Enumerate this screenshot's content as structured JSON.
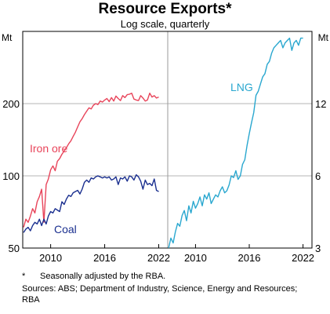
{
  "chart_data": {
    "type": "line",
    "title": "Resource Exports*",
    "subtitle": "Log scale, quarterly",
    "y_scale": "log",
    "grid": true,
    "panels": [
      {
        "id": "left",
        "unit": "Mt",
        "y_axis_side": "left",
        "ylim": [
          50,
          400
        ],
        "yticks": [
          50,
          100,
          200
        ],
        "xlim": [
          2006.9,
          2023.0
        ],
        "xticks": [
          2010,
          2016,
          2022
        ],
        "series": [
          {
            "name": "Iron ore",
            "color": "#e8445a",
            "x": [
              2007.0,
              2007.25,
              2007.5,
              2007.75,
              2008.0,
              2008.25,
              2008.5,
              2008.75,
              2009.0,
              2009.25,
              2009.5,
              2009.75,
              2010.0,
              2010.25,
              2010.5,
              2010.75,
              2011.0,
              2011.25,
              2011.5,
              2011.75,
              2012.0,
              2012.25,
              2012.5,
              2012.75,
              2013.0,
              2013.25,
              2013.5,
              2013.75,
              2014.0,
              2014.25,
              2014.5,
              2014.75,
              2015.0,
              2015.25,
              2015.5,
              2015.75,
              2016.0,
              2016.25,
              2016.5,
              2016.75,
              2017.0,
              2017.25,
              2017.5,
              2017.75,
              2018.0,
              2018.25,
              2018.5,
              2018.75,
              2019.0,
              2019.25,
              2019.5,
              2019.75,
              2020.0,
              2020.25,
              2020.5,
              2020.75,
              2021.0,
              2021.25,
              2021.5,
              2021.75,
              2022.0
            ],
            "values": [
              61,
              66,
              64,
              68,
              73,
              70,
              78,
              82,
              88,
              64,
              92,
              97,
              106,
              110,
              105,
              115,
              118,
              123,
              127,
              131,
              136,
              140,
              146,
              152,
              160,
              168,
              173,
              180,
              186,
              192,
              190,
              197,
              200,
              198,
              205,
              203,
              207,
              210,
              204,
              212,
              205,
              215,
              210,
              206,
              216,
              212,
              218,
              219,
              221,
              209,
              207,
              206,
              216,
              211,
              205,
              207,
              221,
              213,
              216,
              211,
              213
            ]
          },
          {
            "name": "Coal",
            "color": "#1a2f8f",
            "x": [
              2007.0,
              2007.25,
              2007.5,
              2007.75,
              2008.0,
              2008.25,
              2008.5,
              2008.75,
              2009.0,
              2009.25,
              2009.5,
              2009.75,
              2010.0,
              2010.25,
              2010.5,
              2010.75,
              2011.0,
              2011.25,
              2011.5,
              2011.75,
              2012.0,
              2012.25,
              2012.5,
              2012.75,
              2013.0,
              2013.25,
              2013.5,
              2013.75,
              2014.0,
              2014.25,
              2014.5,
              2014.75,
              2015.0,
              2015.25,
              2015.5,
              2015.75,
              2016.0,
              2016.25,
              2016.5,
              2016.75,
              2017.0,
              2017.25,
              2017.5,
              2017.75,
              2018.0,
              2018.25,
              2018.5,
              2018.75,
              2019.0,
              2019.25,
              2019.5,
              2019.75,
              2020.0,
              2020.25,
              2020.5,
              2020.75,
              2021.0,
              2021.25,
              2021.5,
              2021.75,
              2022.0
            ],
            "values": [
              58,
              60,
              61,
              59,
              62,
              64,
              63,
              66,
              62,
              66,
              63,
              68,
              71,
              70,
              73,
              72,
              71,
              78,
              76,
              80,
              83,
              82,
              85,
              86,
              87,
              84,
              88,
              94,
              96,
              94,
              98,
              97,
              99,
              100,
              99,
              98,
              99,
              98,
              99,
              96,
              97,
              99,
              92,
              98,
              97,
              99,
              95,
              100,
              99,
              96,
              101,
              99,
              95,
              88,
              96,
              92,
              93,
              91,
              97,
              87,
              86
            ]
          }
        ]
      },
      {
        "id": "right",
        "unit": "Mt",
        "y_axis_side": "right",
        "ylim": [
          3,
          24
        ],
        "yticks": [
          3,
          6,
          12
        ],
        "xlim": [
          2006.9,
          2023.0
        ],
        "xticks": [
          2010,
          2016,
          2022
        ],
        "series": [
          {
            "name": "LNG",
            "color": "#29a7cf",
            "x": [
              2007.0,
              2007.25,
              2007.5,
              2007.75,
              2008.0,
              2008.25,
              2008.5,
              2008.75,
              2009.0,
              2009.25,
              2009.5,
              2009.75,
              2010.0,
              2010.25,
              2010.5,
              2010.75,
              2011.0,
              2011.25,
              2011.5,
              2011.75,
              2012.0,
              2012.25,
              2012.5,
              2012.75,
              2013.0,
              2013.25,
              2013.5,
              2013.75,
              2014.0,
              2014.25,
              2014.5,
              2014.75,
              2015.0,
              2015.25,
              2015.5,
              2015.75,
              2016.0,
              2016.25,
              2016.5,
              2016.75,
              2017.0,
              2017.25,
              2017.5,
              2017.75,
              2018.0,
              2018.25,
              2018.5,
              2018.75,
              2019.0,
              2019.25,
              2019.5,
              2019.75,
              2020.0,
              2020.25,
              2020.5,
              2020.75,
              2021.0,
              2021.25,
              2021.5,
              2021.75,
              2022.0
            ],
            "values": [
              3.0,
              3.3,
              3.15,
              3.5,
              3.8,
              3.7,
              4.1,
              4.3,
              3.9,
              4.5,
              4.2,
              4.7,
              4.4,
              4.6,
              4.9,
              4.5,
              5.0,
              4.8,
              5.1,
              4.6,
              4.8,
              5.0,
              4.9,
              5.2,
              5.4,
              5.1,
              5.2,
              5.5,
              6.0,
              5.9,
              6.3,
              5.8,
              6.0,
              6.7,
              7.0,
              8.0,
              9.0,
              10.0,
              11.0,
              13.0,
              13.5,
              14.5,
              15.5,
              16.0,
              17.5,
              18.0,
              19.5,
              20.5,
              21.0,
              21.5,
              22.0,
              20.5,
              21.5,
              22.0,
              22.5,
              20.0,
              21.5,
              22.0,
              21.0,
              22.5,
              22.5
            ]
          }
        ]
      }
    ],
    "xtick_labels": [
      "2010",
      "2016",
      "2022"
    ],
    "left_ytick_labels": [
      "50",
      "100",
      "200"
    ],
    "right_ytick_labels": [
      "3",
      "6",
      "12"
    ],
    "annotations": [
      "Iron ore",
      "Coal",
      "LNG"
    ]
  },
  "labels": {
    "title": "Resource Exports*",
    "subtitle": "Log scale, quarterly",
    "unit_left": "Mt",
    "unit_right": "Mt"
  },
  "footnotes": {
    "marker": "*",
    "note": "Seasonally adjusted by the RBA.",
    "sources": "Sources: ABS; Department of Industry, Science, Energy and Resources; RBA"
  }
}
